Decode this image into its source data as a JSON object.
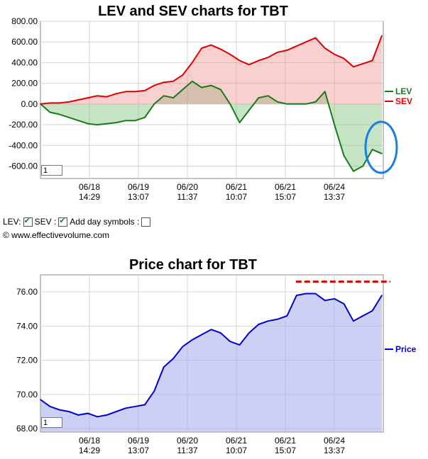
{
  "top_chart": {
    "title": "LEV and SEV charts for TBT",
    "zoom_value": "1",
    "legend": [
      {
        "label": "LEV",
        "color": "#1a7a1a"
      },
      {
        "label": "SEV",
        "color": "#e00000"
      }
    ]
  },
  "controls": {
    "lev_label": "LEV:",
    "sev_label": "SEV :",
    "day_symbols_label": "Add day symbols :",
    "copyright": "© www.effectivevolume.com"
  },
  "bottom_chart": {
    "title": "Price chart for TBT",
    "zoom_value": "1",
    "legend": [
      {
        "label": "Price",
        "color": "#0000cc"
      }
    ]
  },
  "chart_data": [
    {
      "type": "area",
      "title": "LEV and SEV charts for TBT",
      "x_tick_labels": [
        "06/18 14:29",
        "06/19 13:07",
        "06/20 11:37",
        "06/21 10:07",
        "06/21 15:07",
        "06/24 13:37"
      ],
      "y_ticks": [
        800,
        600,
        400,
        200,
        0,
        -200,
        -400,
        -600
      ],
      "y_tick_labels": [
        "800.00",
        "600.00",
        "400.00",
        "200.00",
        "0.00",
        "-200.00",
        "-400.00",
        "-600.00"
      ],
      "ylim": [
        -720,
        800
      ],
      "grid": true,
      "legend_position": "right",
      "series": [
        {
          "name": "LEV",
          "color": "#1a7a1a",
          "values": [
            0,
            -80,
            -100,
            -130,
            -160,
            -190,
            -200,
            -190,
            -180,
            -160,
            -160,
            -130,
            0,
            80,
            60,
            140,
            220,
            160,
            180,
            140,
            0,
            -180,
            -60,
            60,
            80,
            20,
            0,
            0,
            0,
            20,
            120,
            -200,
            -500,
            -650,
            -600,
            -440,
            -480
          ]
        },
        {
          "name": "SEV",
          "color": "#e00000",
          "values": [
            0,
            10,
            10,
            20,
            40,
            60,
            80,
            70,
            100,
            120,
            120,
            130,
            180,
            210,
            220,
            280,
            400,
            540,
            570,
            530,
            480,
            420,
            380,
            420,
            450,
            500,
            520,
            560,
            600,
            640,
            540,
            480,
            440,
            360,
            390,
            420,
            660
          ]
        }
      ]
    },
    {
      "type": "area",
      "title": "Price chart for TBT",
      "x_tick_labels": [
        "06/18 14:29",
        "06/19 13:07",
        "06/20 11:37",
        "06/21 10:07",
        "06/21 15:07",
        "06/24 13:37"
      ],
      "y_ticks": [
        76,
        74,
        72,
        70,
        68
      ],
      "y_tick_labels": [
        "76.00",
        "74.00",
        "72.00",
        "70.00",
        "68.00"
      ],
      "ylim": [
        67.8,
        77
      ],
      "grid": true,
      "legend_position": "right",
      "reference_line": {
        "value": 76.6,
        "color": "#dd0000",
        "style": "dashed"
      },
      "series": [
        {
          "name": "Price",
          "color": "#0000cc",
          "values": [
            69.7,
            69.3,
            69.1,
            69.0,
            68.8,
            68.9,
            68.7,
            68.8,
            69.0,
            69.2,
            69.3,
            69.4,
            70.2,
            71.6,
            72.1,
            72.8,
            73.2,
            73.5,
            73.8,
            73.6,
            73.1,
            72.9,
            73.6,
            74.1,
            74.3,
            74.4,
            74.6,
            75.8,
            75.9,
            75.9,
            75.5,
            75.6,
            75.3,
            74.3,
            74.6,
            74.9,
            75.8
          ]
        }
      ]
    }
  ]
}
